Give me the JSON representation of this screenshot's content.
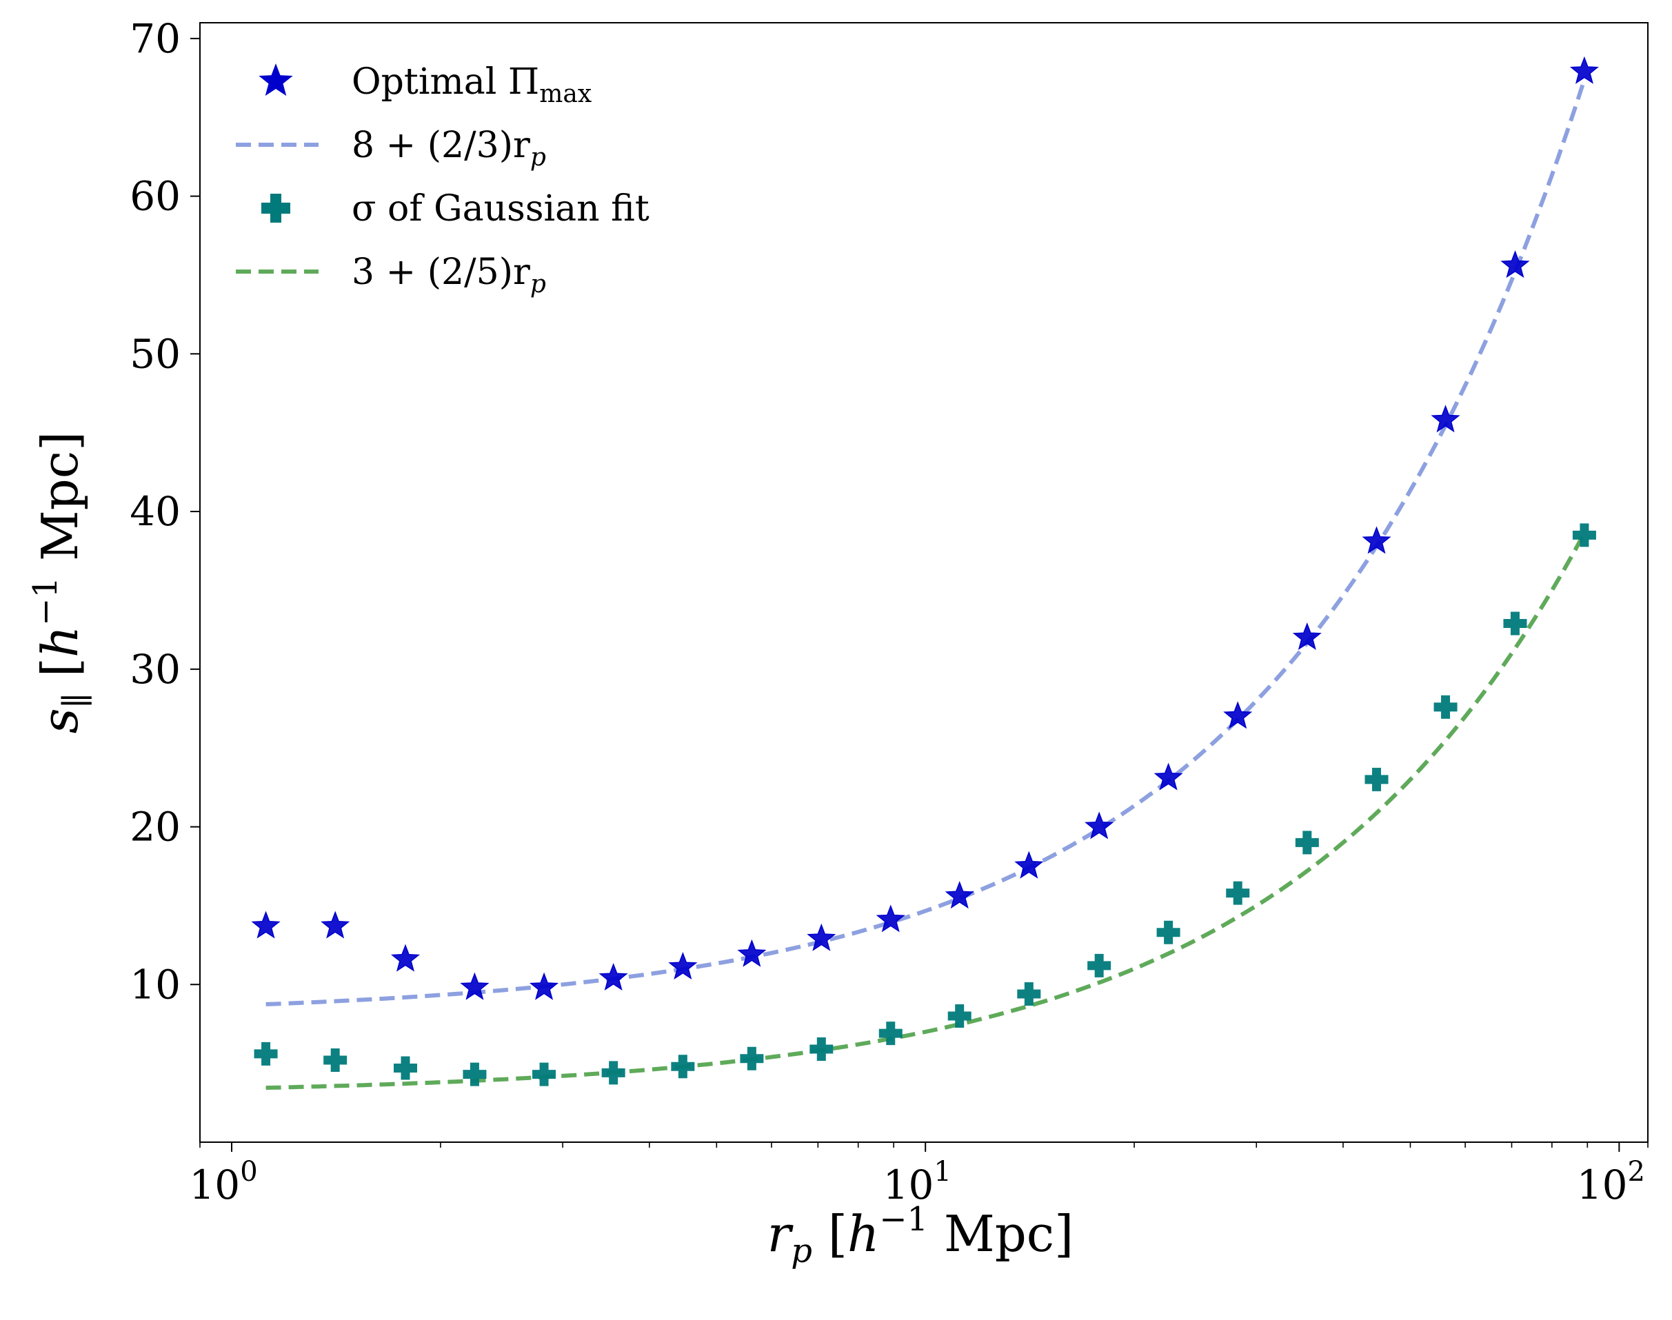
{
  "chart_data": {
    "type": "scatter",
    "xscale": "log",
    "xlim": [
      0.9,
      110
    ],
    "ylim": [
      0,
      71
    ],
    "x_ticks": [
      {
        "value": 1,
        "base": "10",
        "exp": "0"
      },
      {
        "value": 10,
        "base": "10",
        "exp": "1"
      },
      {
        "value": 100,
        "base": "10",
        "exp": "2"
      }
    ],
    "y_ticks": [
      {
        "value": 10,
        "label": "10"
      },
      {
        "value": 20,
        "label": "20"
      },
      {
        "value": 30,
        "label": "30"
      },
      {
        "value": 40,
        "label": "40"
      },
      {
        "value": 50,
        "label": "50"
      },
      {
        "value": 60,
        "label": "60"
      },
      {
        "value": 70,
        "label": "70"
      }
    ],
    "xlabel": {
      "main": "r",
      "sub": "p",
      "unit_open": " [",
      "h": "h",
      "sup": "−1",
      "unit_close": " Mpc]"
    },
    "ylabel": {
      "main": "s",
      "sub": "∥",
      "unit_open": " [",
      "h": "h",
      "sup": "−1",
      "unit_close": " Mpc]"
    },
    "x": [
      1.12,
      1.41,
      1.78,
      2.24,
      2.82,
      3.55,
      4.47,
      5.62,
      7.08,
      8.91,
      11.2,
      14.1,
      17.8,
      22.4,
      28.2,
      35.5,
      44.7,
      56.2,
      70.8,
      89.1
    ],
    "series": [
      {
        "name": "Optimal Π_max",
        "kind": "scatter",
        "marker": "star",
        "color": "#0000cc",
        "values": [
          13.7,
          13.7,
          11.6,
          9.8,
          9.8,
          10.4,
          11.1,
          11.9,
          12.9,
          14.1,
          15.6,
          17.5,
          20.0,
          23.1,
          27.0,
          32.0,
          38.1,
          45.8,
          55.6,
          67.9
        ]
      },
      {
        "name": "8 + (2/3)r_p",
        "kind": "line",
        "color": "#8da0e0",
        "intercept": 8,
        "slope": 0.6667
      },
      {
        "name": "σ of Gaussian fit",
        "kind": "scatter",
        "marker": "plus",
        "color": "#007a7a",
        "values": [
          5.6,
          5.2,
          4.7,
          4.3,
          4.3,
          4.4,
          4.8,
          5.3,
          5.9,
          6.9,
          8.0,
          9.4,
          11.2,
          13.3,
          15.8,
          19.0,
          23.0,
          27.6,
          32.9,
          38.5
        ]
      },
      {
        "name": "3 + (2/5)r_p",
        "kind": "line",
        "color": "#5faa5a",
        "intercept": 3,
        "slope": 0.4
      }
    ],
    "legend": {
      "placement": "top-left",
      "entries": [
        {
          "marker": "star",
          "color": "#0000cc",
          "text": "Optimal Π",
          "sub": "max"
        },
        {
          "marker": "dash",
          "color": "#8da0e0",
          "text": "8 + (2/3)r",
          "sub": "p"
        },
        {
          "marker": "plus",
          "color": "#007a7a",
          "text": "σ of Gaussian fit",
          "sub": ""
        },
        {
          "marker": "dash",
          "color": "#5faa5a",
          "text": "3 + (2/5)r",
          "sub": "p"
        }
      ]
    }
  }
}
